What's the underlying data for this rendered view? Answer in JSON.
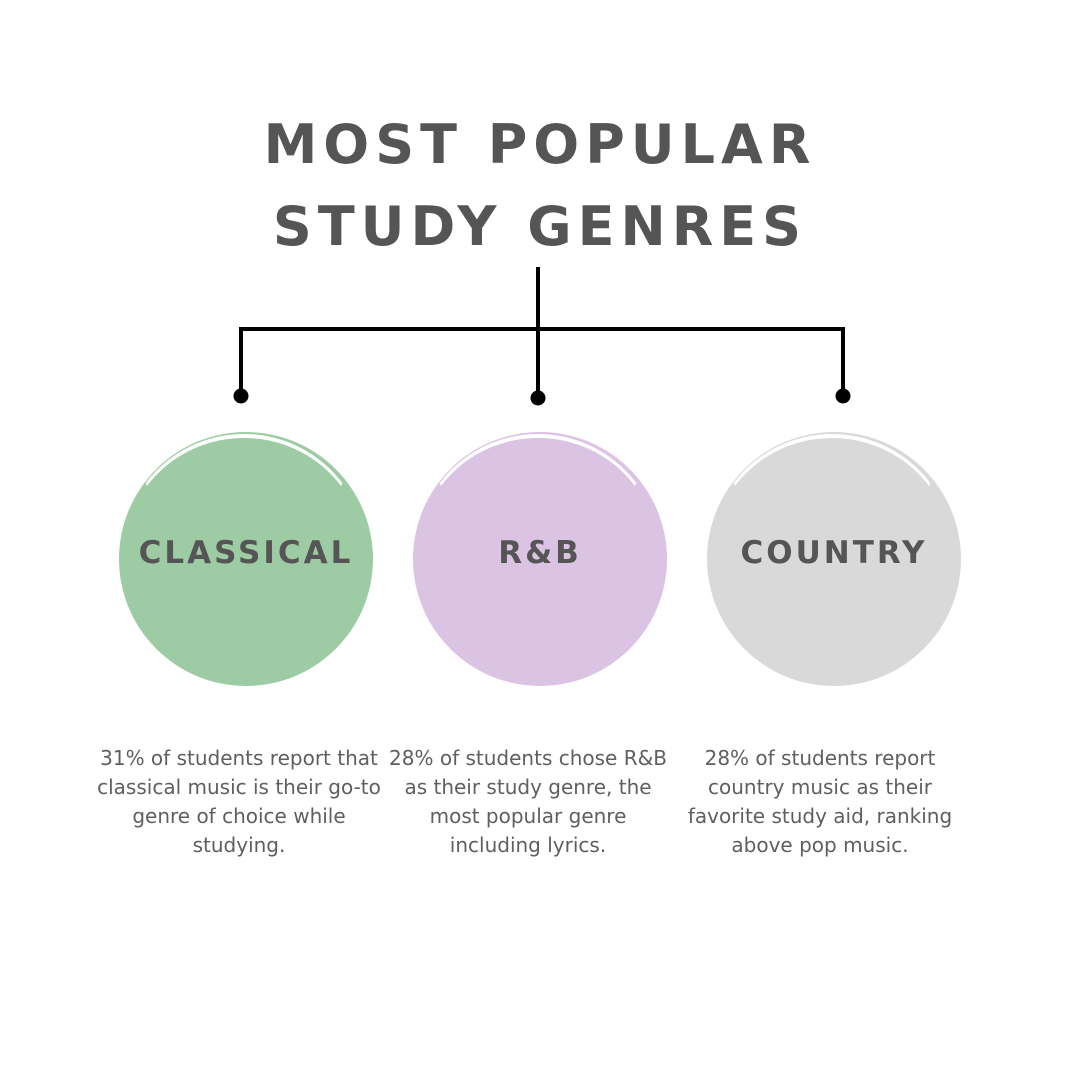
{
  "title": {
    "line1": "Most Popular",
    "line2": "Study Genres"
  },
  "genres": [
    {
      "name": "Classical",
      "color": "#9dcca4",
      "description": "31% of students report that classical music is their go-to genre of choice while studying."
    },
    {
      "name": "R&B",
      "color": "#dbc4e3",
      "description": "28% of students chose R&B as their study genre, the most popular genre including lyrics."
    },
    {
      "name": "Country",
      "color": "#d9d9d9",
      "description": "28% of students report country music as their favorite study aid, ranking above pop music."
    }
  ],
  "colors": {
    "text": "#555555",
    "connector": "#000000",
    "background": "#ffffff"
  }
}
